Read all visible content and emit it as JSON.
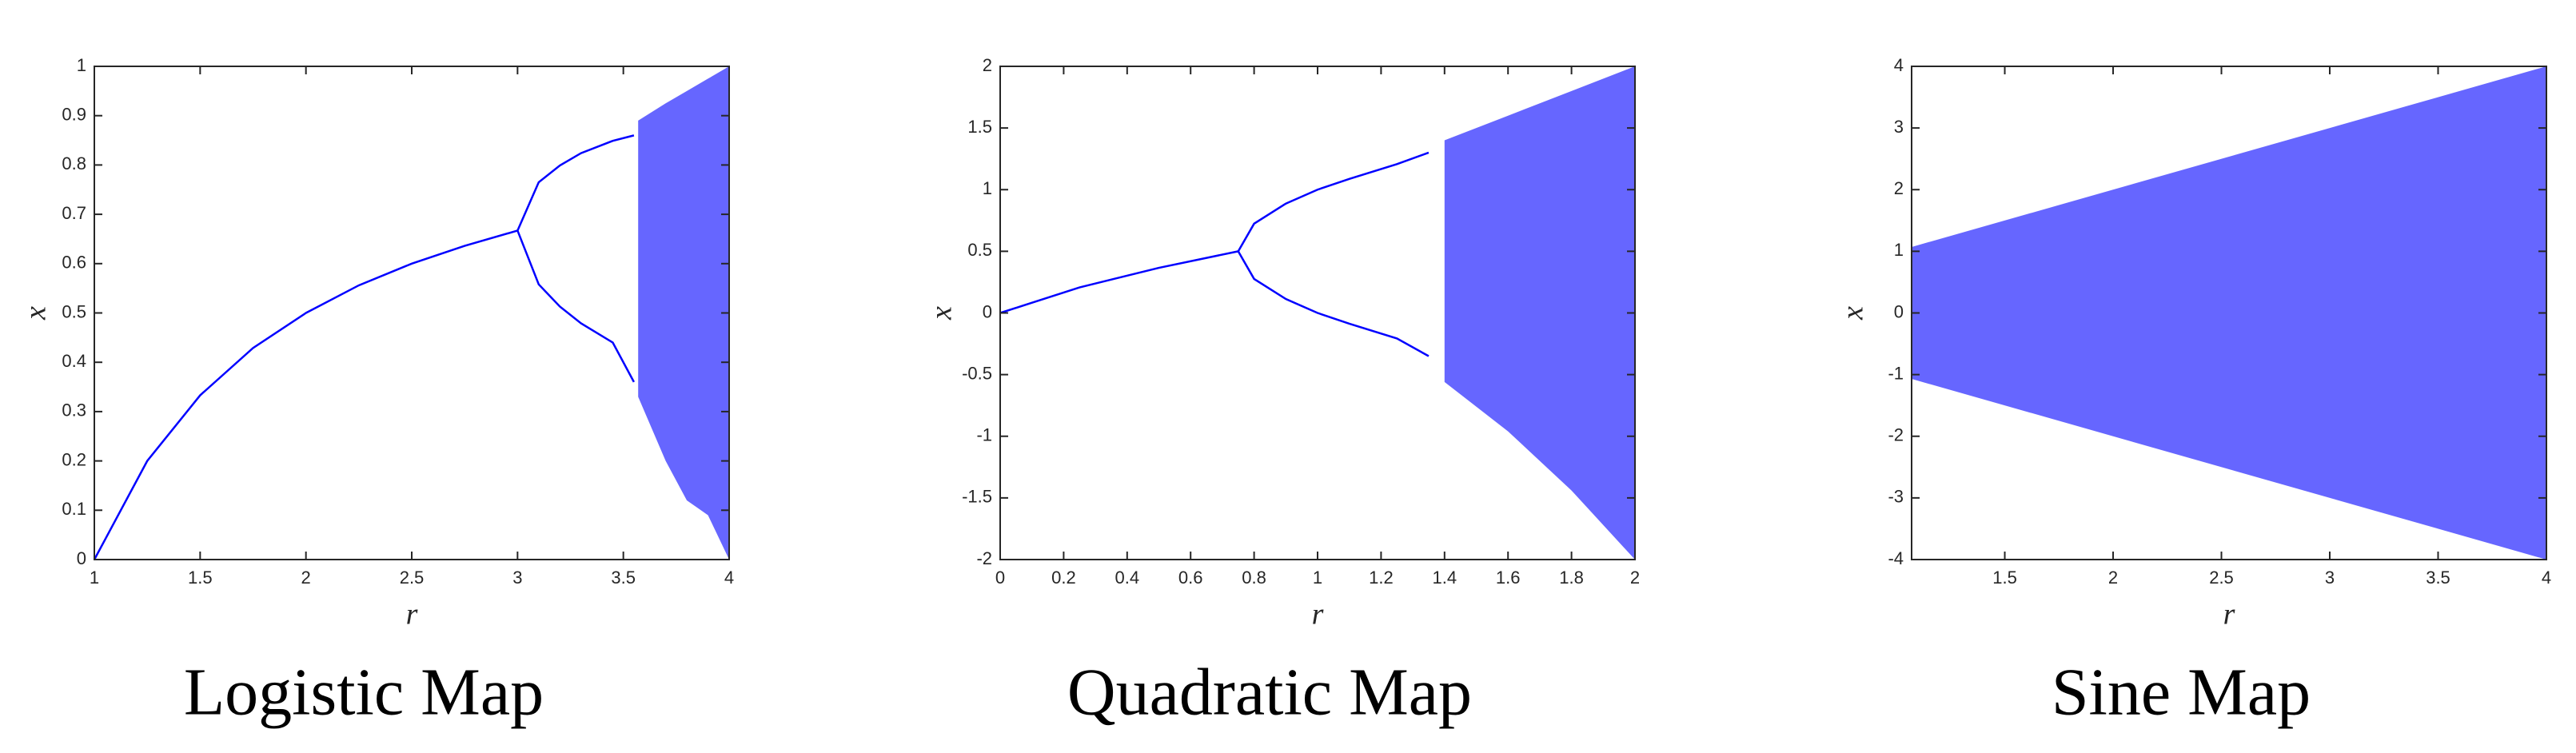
{
  "chart_data": [
    {
      "type": "line",
      "title": "Logistic Map",
      "xlabel": "r",
      "ylabel": "x",
      "color": "#0000ff",
      "xlim": [
        1,
        4
      ],
      "ylim": [
        0,
        1
      ],
      "xticks": [
        1,
        1.5,
        2,
        2.5,
        3,
        3.5,
        4
      ],
      "yticks": [
        0,
        0.1,
        0.2,
        0.3,
        0.4,
        0.5,
        0.6,
        0.7,
        0.8,
        0.9,
        1
      ],
      "series": [
        {
          "x": [
            1,
            1.25,
            1.5,
            1.75,
            2,
            2.25,
            2.5,
            2.75,
            3
          ],
          "values": [
            0,
            0.2,
            0.333,
            0.429,
            0.5,
            0.556,
            0.6,
            0.636,
            0.667
          ]
        },
        {
          "x": [
            3,
            3.1,
            3.2,
            3.3,
            3.45,
            3.55
          ],
          "values": [
            0.667,
            0.765,
            0.799,
            0.824,
            0.849,
            0.86
          ]
        },
        {
          "x": [
            3,
            3.1,
            3.2,
            3.3,
            3.45,
            3.55
          ],
          "values": [
            0.667,
            0.558,
            0.513,
            0.479,
            0.44,
            0.36
          ]
        }
      ],
      "bands": [
        {
          "x": [
            3.57,
            3.7,
            3.8,
            3.9,
            4
          ],
          "low": [
            0.33,
            0.2,
            0.12,
            0.09,
            0
          ],
          "high": [
            0.89,
            0.925,
            0.95,
            0.975,
            1
          ]
        }
      ]
    },
    {
      "type": "line",
      "title": "Quadratic Map",
      "xlabel": "r",
      "ylabel": "x",
      "color": "#0000ff",
      "xlim": [
        0,
        2
      ],
      "ylim": [
        -2,
        2
      ],
      "xticks": [
        0,
        0.2,
        0.4,
        0.6,
        0.8,
        1,
        1.2,
        1.4,
        1.6,
        1.8,
        2
      ],
      "yticks": [
        -2,
        -1.5,
        -1,
        -0.5,
        0,
        0.5,
        1,
        1.5,
        2
      ],
      "series": [
        {
          "x": [
            0,
            0.25,
            0.5,
            0.75
          ],
          "values": [
            0,
            0.207,
            0.366,
            0.5
          ]
        },
        {
          "x": [
            0.75,
            0.8,
            0.9,
            1,
            1.1,
            1.25,
            1.35
          ],
          "values": [
            0.5,
            0.724,
            0.887,
            1,
            1.087,
            1.207,
            1.3
          ]
        },
        {
          "x": [
            0.75,
            0.8,
            0.9,
            1,
            1.1,
            1.25,
            1.35
          ],
          "values": [
            0.5,
            0.276,
            0.113,
            0,
            -0.087,
            -0.207,
            -0.35
          ]
        }
      ],
      "bands": [
        {
          "x": [
            1.4,
            1.6,
            1.8,
            2
          ],
          "low": [
            -0.56,
            -0.96,
            -1.44,
            -2
          ],
          "high": [
            1.4,
            1.6,
            1.8,
            2
          ]
        }
      ]
    },
    {
      "type": "line",
      "title": "Sine Map",
      "xlabel": "r",
      "ylabel": "x",
      "color": "#0000ff",
      "xlim": [
        1.07,
        4
      ],
      "ylim": [
        -4,
        4
      ],
      "xticks": [
        1.5,
        2,
        2.5,
        3,
        3.5,
        4
      ],
      "yticks": [
        -4,
        -3,
        -2,
        -1,
        0,
        1,
        2,
        3,
        4
      ],
      "series": [],
      "bands": [
        {
          "x": [
            1.07,
            4
          ],
          "low": [
            -1.07,
            -4
          ],
          "high": [
            1.07,
            4
          ]
        }
      ]
    }
  ]
}
